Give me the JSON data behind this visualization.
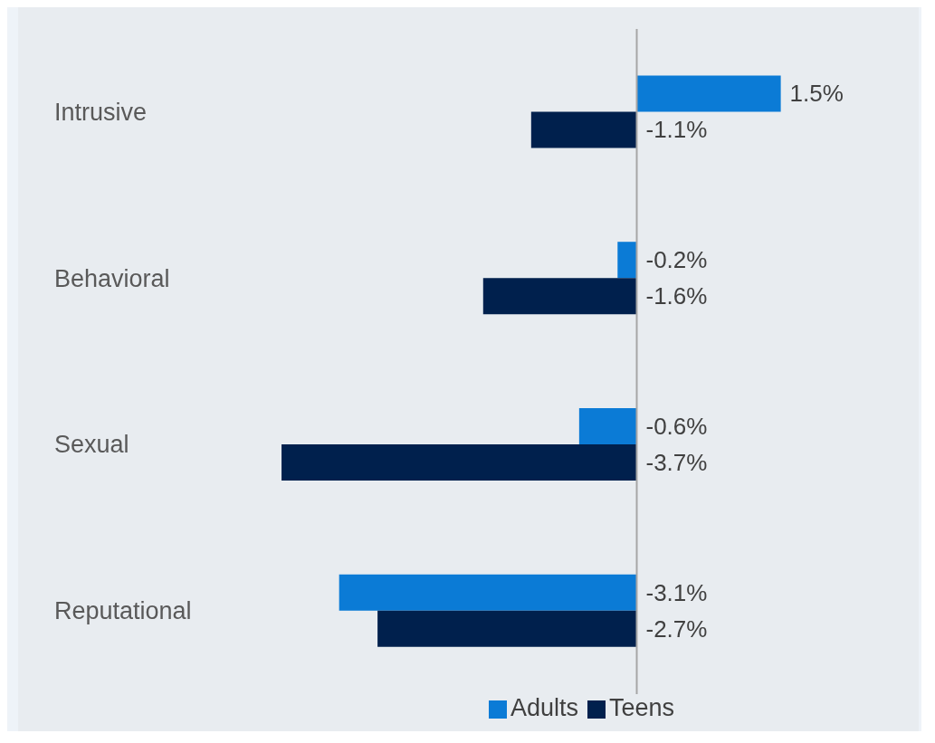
{
  "chart_data": {
    "type": "bar",
    "orientation": "horizontal",
    "tick_labels": "y",
    "categories": [
      "Intrusive",
      "Behavioral",
      "Sexual",
      "Reputational"
    ],
    "series": [
      {
        "name": "Adults",
        "color": "#0b7bd6",
        "values": [
          1.5,
          -0.2,
          -0.6,
          -3.1
        ],
        "value_labels": [
          "1.5%",
          "-0.2%",
          "-0.6%",
          "-3.1%"
        ]
      },
      {
        "name": "Teens",
        "color": "#00204d",
        "values": [
          -1.1,
          -1.6,
          -3.7,
          -2.7
        ],
        "value_labels": [
          "-1.1%",
          "-1.6%",
          "-3.7%",
          "-2.7%"
        ]
      }
    ],
    "legend": "bottom",
    "grid": false
  }
}
